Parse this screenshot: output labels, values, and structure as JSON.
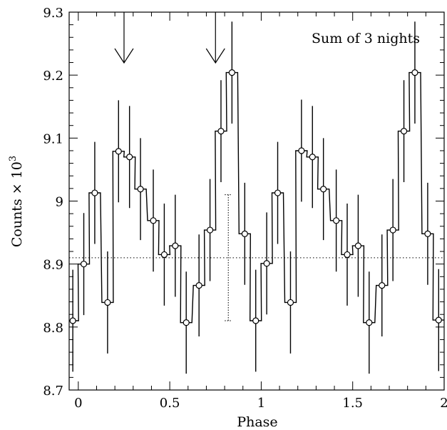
{
  "chart_data": {
    "type": "line",
    "title": "",
    "annotation": "Sum of 3 nights",
    "xlabel": "Phase",
    "ylabel_main": "Counts × 10",
    "ylabel_sup": "3",
    "xlim": [
      -0.05,
      2.0
    ],
    "ylim": [
      8.7,
      9.3
    ],
    "x_ticks": [
      0,
      0.5,
      1,
      1.5,
      2
    ],
    "x_tick_labels": [
      "0",
      "0.5",
      "1",
      "1.5",
      "2"
    ],
    "y_ticks": [
      8.7,
      8.8,
      8.9,
      9.0,
      9.1,
      9.2,
      9.3
    ],
    "y_tick_labels": [
      "8.7",
      "8.8",
      "8.9",
      "9",
      "9.1",
      "9.2",
      "9.3"
    ],
    "grid": false,
    "bin_width": 0.0625,
    "phase": [
      -0.03,
      0.03,
      0.09,
      0.16,
      0.22,
      0.28,
      0.34,
      0.41,
      0.47,
      0.53,
      0.59,
      0.66,
      0.72,
      0.78,
      0.84,
      0.91,
      0.97,
      1.03,
      1.09,
      1.16,
      1.22,
      1.28,
      1.34,
      1.41,
      1.47,
      1.53,
      1.59,
      1.66,
      1.72,
      1.78,
      1.84,
      1.91,
      1.97
    ],
    "counts": [
      8.81,
      8.9,
      9.013,
      8.839,
      9.079,
      9.07,
      9.019,
      8.969,
      8.915,
      8.929,
      8.807,
      8.866,
      8.954,
      9.111,
      9.204,
      8.948,
      8.81,
      8.901,
      9.013,
      8.839,
      9.08,
      9.07,
      9.019,
      8.969,
      8.915,
      8.929,
      8.807,
      8.866,
      8.954,
      9.111,
      9.204,
      8.948,
      8.811
    ],
    "error": 0.081,
    "mean_line": 8.91,
    "typical_error_bar": {
      "x": 0.82,
      "low": 8.81,
      "high": 9.01
    },
    "arrows_phase": [
      0.25,
      0.75
    ]
  }
}
